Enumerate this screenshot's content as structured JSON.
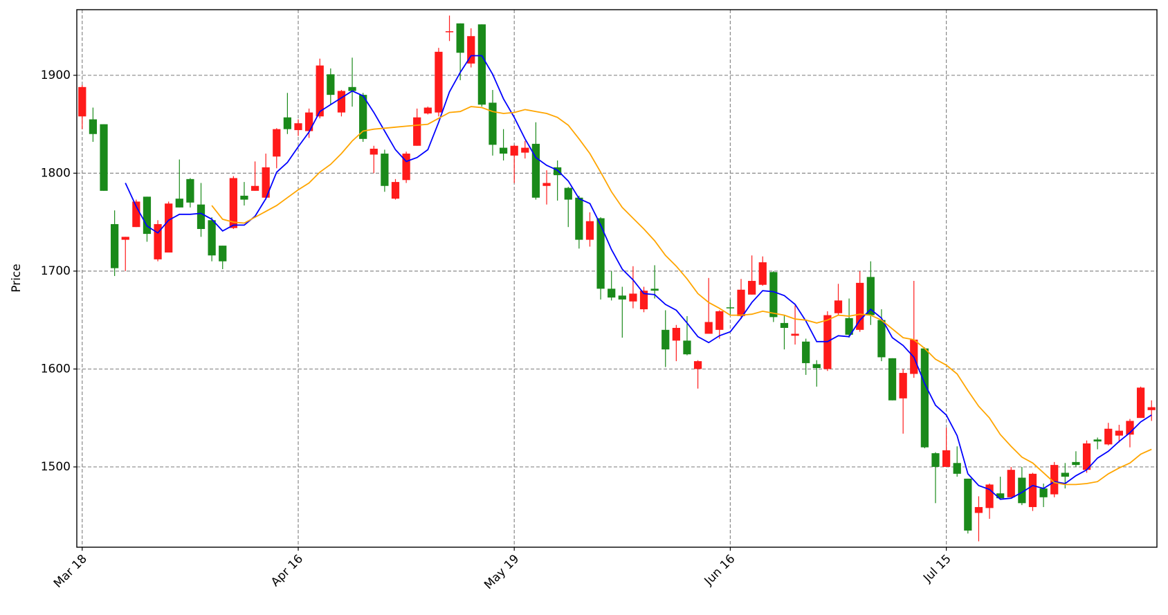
{
  "chart_data": {
    "type": "candlestick",
    "ylabel": "Price",
    "categories": [
      "Mar 18",
      null,
      null,
      null,
      null,
      null,
      null,
      null,
      null,
      null,
      null,
      null,
      null,
      null,
      null,
      null,
      null,
      null,
      null,
      null,
      "Apr 16",
      null,
      null,
      null,
      null,
      null,
      null,
      null,
      null,
      null,
      null,
      null,
      null,
      null,
      null,
      null,
      null,
      null,
      null,
      null,
      "May 19",
      null,
      null,
      null,
      null,
      null,
      null,
      null,
      null,
      null,
      null,
      null,
      null,
      null,
      null,
      null,
      null,
      null,
      null,
      null,
      "Jun 16",
      null,
      null,
      null,
      null,
      null,
      null,
      null,
      null,
      null,
      null,
      null,
      null,
      null,
      null,
      null,
      null,
      null,
      null,
      null,
      "Jul 15",
      null,
      null,
      null,
      null,
      null,
      null,
      null,
      null,
      null,
      null,
      null,
      null,
      null,
      null,
      null,
      null,
      null,
      null,
      null
    ],
    "open": [
      1858,
      1855,
      1850,
      1748,
      1732,
      1745,
      1776,
      1712,
      1719,
      1774,
      1794,
      1768,
      1752,
      1726,
      1744,
      1777,
      1782,
      1775,
      1817,
      1857,
      1844,
      1843,
      1858,
      1901,
      1862,
      1888,
      1880,
      1819,
      1820,
      1774,
      1793,
      1828,
      1861,
      1862,
      1944,
      1953,
      1912,
      1952,
      1872,
      1826,
      1818,
      1821,
      1830,
      1787,
      1806,
      1785,
      1775,
      1732,
      1754,
      1682,
      1675,
      1669,
      1661,
      1682,
      1640,
      1629,
      1629,
      1600,
      1636,
      1640,
      1663,
      1654,
      1676,
      1686,
      1699,
      1647,
      1634,
      1628,
      1605,
      1600,
      1657,
      1652,
      1640,
      1694,
      1650,
      1611,
      1570,
      1595,
      1621,
      1514,
      1500,
      1504,
      1488,
      1453,
      1458,
      1473,
      1469,
      1489,
      1459,
      1478,
      1472,
      1494,
      1505,
      1497,
      1528,
      1523,
      1532,
      1533,
      1550,
      1558
    ],
    "high": [
      1890,
      1867,
      1850,
      1762,
      1735,
      1773,
      1776,
      1752,
      1771,
      1814,
      1795,
      1790,
      1755,
      1726,
      1797,
      1791,
      1812,
      1820,
      1846,
      1882,
      1855,
      1866,
      1917,
      1907,
      1885,
      1918,
      1882,
      1828,
      1824,
      1794,
      1822,
      1866,
      1868,
      1928,
      1961,
      1953,
      1948,
      1952,
      1885,
      1845,
      1829,
      1833,
      1852,
      1803,
      1813,
      1786,
      1777,
      1760,
      1755,
      1700,
      1684,
      1705,
      1684,
      1706,
      1660,
      1645,
      1654,
      1609,
      1693,
      1660,
      1671,
      1692,
      1716,
      1715,
      1700,
      1655,
      1665,
      1631,
      1609,
      1659,
      1687,
      1672,
      1700,
      1710,
      1661,
      1611,
      1600,
      1690,
      1622,
      1515,
      1540,
      1521,
      1488,
      1470,
      1483,
      1490,
      1500,
      1500,
      1494,
      1483,
      1505,
      1504,
      1516,
      1527,
      1530,
      1545,
      1543,
      1549,
      1582,
      1568
    ],
    "low": [
      1845,
      1832,
      1782,
      1695,
      1700,
      1745,
      1730,
      1710,
      1719,
      1765,
      1765,
      1735,
      1710,
      1702,
      1743,
      1767,
      1782,
      1773,
      1805,
      1840,
      1838,
      1836,
      1856,
      1870,
      1858,
      1868,
      1832,
      1800,
      1781,
      1773,
      1790,
      1828,
      1860,
      1858,
      1935,
      1895,
      1908,
      1868,
      1818,
      1813,
      1790,
      1815,
      1773,
      1768,
      1772,
      1745,
      1723,
      1725,
      1671,
      1670,
      1632,
      1662,
      1658,
      1672,
      1602,
      1608,
      1614,
      1580,
      1636,
      1631,
      1655,
      1651,
      1676,
      1685,
      1648,
      1620,
      1625,
      1594,
      1582,
      1598,
      1655,
      1632,
      1638,
      1645,
      1608,
      1568,
      1534,
      1591,
      1519,
      1463,
      1500,
      1490,
      1432,
      1424,
      1447,
      1467,
      1469,
      1461,
      1455,
      1459,
      1469,
      1478,
      1500,
      1494,
      1518,
      1522,
      1525,
      1520,
      1550,
      1547
    ],
    "close": [
      1888,
      1840,
      1782,
      1703,
      1735,
      1771,
      1738,
      1748,
      1769,
      1765,
      1770,
      1743,
      1716,
      1710,
      1795,
      1773,
      1787,
      1806,
      1845,
      1845,
      1851,
      1862,
      1910,
      1880,
      1884,
      1884,
      1835,
      1825,
      1787,
      1791,
      1820,
      1857,
      1867,
      1924,
      1945,
      1923,
      1940,
      1870,
      1829,
      1820,
      1828,
      1826,
      1775,
      1790,
      1798,
      1773,
      1732,
      1751,
      1682,
      1673,
      1671,
      1677,
      1680,
      1680,
      1620,
      1642,
      1615,
      1608,
      1648,
      1659,
      1662,
      1681,
      1690,
      1709,
      1653,
      1642,
      1636,
      1606,
      1601,
      1655,
      1670,
      1635,
      1688,
      1655,
      1612,
      1568,
      1596,
      1630,
      1520,
      1500,
      1517,
      1493,
      1435,
      1459,
      1482,
      1468,
      1497,
      1463,
      1493,
      1469,
      1502,
      1490,
      1502,
      1524,
      1526,
      1539,
      1537,
      1547,
      1581,
      1561
    ],
    "up_color": "#ff1a1a",
    "down_color": "#1a8a1a",
    "lines": [
      {
        "color": "#0000ff",
        "values": [
          null,
          null,
          null,
          null,
          1790,
          1766,
          1746,
          1739,
          1752,
          1758,
          1758,
          1759,
          1753,
          1741,
          1747,
          1747,
          1756,
          1774,
          1801,
          1811,
          1827,
          1842,
          1863,
          1870,
          1877,
          1884,
          1879,
          1862,
          1843,
          1824,
          1812,
          1816,
          1824,
          1852,
          1883,
          1903,
          1920,
          1920,
          1901,
          1876,
          1857,
          1835,
          1816,
          1808,
          1803,
          1792,
          1774,
          1769,
          1747,
          1722,
          1702,
          1691,
          1677,
          1676,
          1666,
          1660,
          1647,
          1633,
          1627,
          1634,
          1638,
          1652,
          1668,
          1680,
          1679,
          1675,
          1666,
          1649,
          1628,
          1628,
          1634,
          1633,
          1650,
          1661,
          1652,
          1632,
          1624,
          1612,
          1585,
          1563,
          1553,
          1532,
          1493,
          1481,
          1477,
          1467,
          1468,
          1474,
          1481,
          1478,
          1485,
          1483,
          1491,
          1497,
          1509,
          1516,
          1526,
          1535,
          1546,
          1553
        ]
      },
      {
        "color": "#ffa500",
        "values": [
          null,
          null,
          null,
          null,
          null,
          null,
          null,
          null,
          null,
          null,
          null,
          null,
          1767,
          1753,
          1750,
          1749,
          1755,
          1761,
          1767,
          1775,
          1783,
          1790,
          1801,
          1809,
          1820,
          1833,
          1843,
          1845,
          1846,
          1847,
          1848,
          1849,
          1850,
          1856,
          1862,
          1863,
          1868,
          1867,
          1863,
          1861,
          1862,
          1865,
          1863,
          1861,
          1857,
          1849,
          1835,
          1820,
          1801,
          1781,
          1765,
          1754,
          1743,
          1731,
          1716,
          1705,
          1692,
          1677,
          1668,
          1662,
          1655,
          1655,
          1656,
          1659,
          1657,
          1655,
          1651,
          1650,
          1647,
          1650,
          1655,
          1654,
          1656,
          1655,
          1650,
          1641,
          1632,
          1630,
          1621,
          1610,
          1604,
          1595,
          1578,
          1562,
          1550,
          1533,
          1521,
          1510,
          1504,
          1494,
          1484,
          1482,
          1482,
          1483,
          1485,
          1493,
          1499,
          1504,
          1513,
          1518
        ]
      }
    ],
    "xlim": [
      -0.5,
      99.5
    ],
    "ylim": [
      1418,
      1967
    ],
    "yticks": [
      1500,
      1600,
      1700,
      1800,
      1900
    ],
    "grid": true
  }
}
